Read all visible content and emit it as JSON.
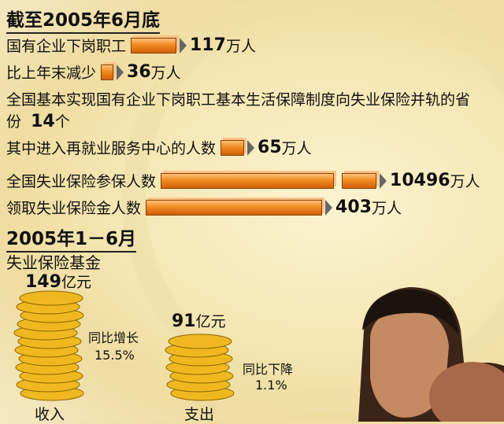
{
  "section1": {
    "title": "截至2005年6月底",
    "items": [
      {
        "label": "国有企业下岗职工",
        "value": 117,
        "unit": "万人"
      },
      {
        "label": "比上年末减少",
        "value": 36,
        "unit": "万人"
      },
      {
        "label": "全国基本实现国有企业下岗职工基本生活保障制度向失业保险并轨的省份",
        "value": 14,
        "unit": "个"
      },
      {
        "label": "其中进入再就业服务中心的人数",
        "value": 65,
        "unit": "万人"
      },
      {
        "label": "全国失业保险参保人数",
        "value": 10496,
        "unit": "万人"
      },
      {
        "label": "领取失业保险金人数",
        "value": 403,
        "unit": "万人"
      }
    ]
  },
  "section2": {
    "title": "2005年1－6月",
    "subtitle": "失业保险基金",
    "income": {
      "value": 149,
      "unit": "亿元",
      "change_label": "同比增长",
      "change": "15.5%",
      "label": "收入"
    },
    "expense": {
      "value": 91,
      "unit": "亿元",
      "change_label": "同比下降",
      "change": "1.1%",
      "label": "支出"
    }
  }
}
